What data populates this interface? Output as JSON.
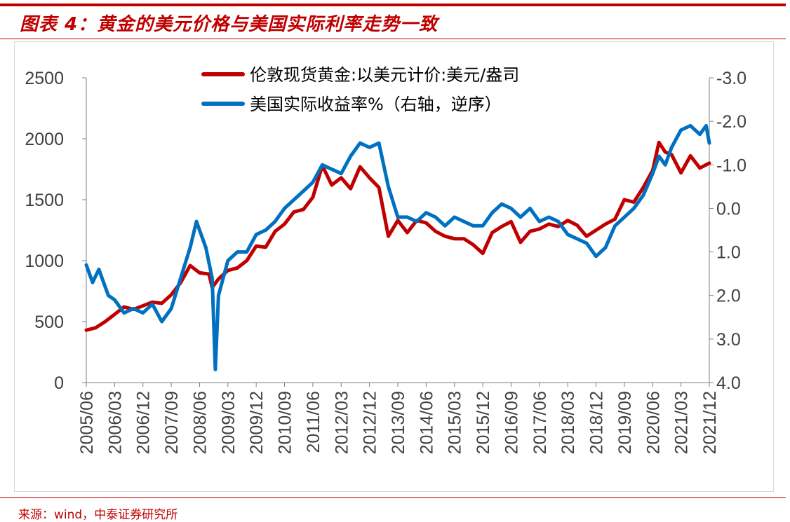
{
  "title": "图表 4：黄金的美元价格与美国实际利率走势一致",
  "source": "来源：wind，中泰证券研究所",
  "colors": {
    "accent": "#c00000",
    "gold_series": "#c00000",
    "yield_series": "#0070c0",
    "axis": "#7f7f7f",
    "text": "#404040"
  },
  "chart_data": {
    "type": "line",
    "title": "",
    "legend_position": "top-center",
    "grid": false,
    "x_ticks": [
      "2005/06",
      "2006/03",
      "2006/12",
      "2007/09",
      "2008/06",
      "2009/03",
      "2009/12",
      "2010/09",
      "2011/06",
      "2012/03",
      "2012/12",
      "2013/09",
      "2014/06",
      "2015/03",
      "2015/12",
      "2016/09",
      "2017/06",
      "2018/03",
      "2018/12",
      "2019/09",
      "2020/06",
      "2021/03",
      "2021/12"
    ],
    "y_left": {
      "ticks": [
        "0",
        "500",
        "1000",
        "1500",
        "2000",
        "2500"
      ],
      "range": [
        0,
        2500
      ]
    },
    "y_right": {
      "ticks": [
        "-3.0",
        "-2.0",
        "-1.0",
        "0.0",
        "1.0",
        "2.0",
        "3.0",
        "4.0"
      ],
      "range": [
        -3.0,
        4.0
      ],
      "reversed": true
    },
    "x_range": [
      "2005-06",
      "2021-12"
    ],
    "series": [
      {
        "name": "伦敦现货黄金:以美元计价:美元/盎司",
        "axis": "left",
        "color": "#c00000",
        "points": [
          [
            "2005-06",
            430
          ],
          [
            "2005-09",
            450
          ],
          [
            "2005-12",
            500
          ],
          [
            "2006-03",
            560
          ],
          [
            "2006-06",
            620
          ],
          [
            "2006-09",
            600
          ],
          [
            "2006-12",
            630
          ],
          [
            "2007-03",
            660
          ],
          [
            "2007-06",
            650
          ],
          [
            "2007-09",
            720
          ],
          [
            "2007-12",
            820
          ],
          [
            "2008-03",
            960
          ],
          [
            "2008-06",
            900
          ],
          [
            "2008-09",
            890
          ],
          [
            "2008-10",
            780
          ],
          [
            "2008-12",
            850
          ],
          [
            "2009-03",
            920
          ],
          [
            "2009-06",
            940
          ],
          [
            "2009-09",
            1000
          ],
          [
            "2009-12",
            1120
          ],
          [
            "2010-03",
            1110
          ],
          [
            "2010-06",
            1240
          ],
          [
            "2010-09",
            1300
          ],
          [
            "2010-12",
            1400
          ],
          [
            "2011-03",
            1420
          ],
          [
            "2011-06",
            1520
          ],
          [
            "2011-09",
            1780
          ],
          [
            "2011-12",
            1620
          ],
          [
            "2012-03",
            1680
          ],
          [
            "2012-06",
            1590
          ],
          [
            "2012-09",
            1770
          ],
          [
            "2012-12",
            1680
          ],
          [
            "2013-03",
            1600
          ],
          [
            "2013-06",
            1200
          ],
          [
            "2013-09",
            1330
          ],
          [
            "2013-12",
            1230
          ],
          [
            "2014-03",
            1330
          ],
          [
            "2014-06",
            1310
          ],
          [
            "2014-09",
            1240
          ],
          [
            "2014-12",
            1200
          ],
          [
            "2015-03",
            1180
          ],
          [
            "2015-06",
            1180
          ],
          [
            "2015-09",
            1130
          ],
          [
            "2015-12",
            1060
          ],
          [
            "2016-03",
            1230
          ],
          [
            "2016-06",
            1280
          ],
          [
            "2016-09",
            1320
          ],
          [
            "2016-12",
            1150
          ],
          [
            "2017-03",
            1240
          ],
          [
            "2017-06",
            1260
          ],
          [
            "2017-09",
            1300
          ],
          [
            "2017-12",
            1280
          ],
          [
            "2018-03",
            1330
          ],
          [
            "2018-06",
            1290
          ],
          [
            "2018-09",
            1200
          ],
          [
            "2018-12",
            1250
          ],
          [
            "2019-03",
            1300
          ],
          [
            "2019-06",
            1340
          ],
          [
            "2019-09",
            1500
          ],
          [
            "2019-12",
            1480
          ],
          [
            "2020-03",
            1600
          ],
          [
            "2020-06",
            1740
          ],
          [
            "2020-08",
            1970
          ],
          [
            "2020-10",
            1890
          ],
          [
            "2020-12",
            1870
          ],
          [
            "2021-03",
            1720
          ],
          [
            "2021-06",
            1860
          ],
          [
            "2021-09",
            1760
          ],
          [
            "2021-12",
            1800
          ]
        ]
      },
      {
        "name": "美国实际收益率%（右轴，逆序）",
        "axis": "right",
        "color": "#0070c0",
        "points": [
          [
            "2005-06",
            1.3
          ],
          [
            "2005-08",
            1.7
          ],
          [
            "2005-10",
            1.4
          ],
          [
            "2006-01",
            2.0
          ],
          [
            "2006-03",
            2.1
          ],
          [
            "2006-06",
            2.4
          ],
          [
            "2006-09",
            2.3
          ],
          [
            "2006-12",
            2.4
          ],
          [
            "2007-03",
            2.2
          ],
          [
            "2007-06",
            2.6
          ],
          [
            "2007-09",
            2.3
          ],
          [
            "2007-12",
            1.6
          ],
          [
            "2008-03",
            0.9
          ],
          [
            "2008-05",
            0.3
          ],
          [
            "2008-08",
            0.9
          ],
          [
            "2008-10",
            1.6
          ],
          [
            "2008-11",
            3.7
          ],
          [
            "2008-12",
            2.0
          ],
          [
            "2009-03",
            1.2
          ],
          [
            "2009-06",
            1.0
          ],
          [
            "2009-09",
            1.0
          ],
          [
            "2009-12",
            0.6
          ],
          [
            "2010-03",
            0.5
          ],
          [
            "2010-06",
            0.3
          ],
          [
            "2010-09",
            0.0
          ],
          [
            "2010-12",
            -0.2
          ],
          [
            "2011-03",
            -0.4
          ],
          [
            "2011-06",
            -0.6
          ],
          [
            "2011-09",
            -1.0
          ],
          [
            "2011-12",
            -0.9
          ],
          [
            "2012-03",
            -0.8
          ],
          [
            "2012-06",
            -1.2
          ],
          [
            "2012-09",
            -1.5
          ],
          [
            "2012-12",
            -1.4
          ],
          [
            "2013-03",
            -1.5
          ],
          [
            "2013-06",
            -0.5
          ],
          [
            "2013-09",
            0.2
          ],
          [
            "2013-12",
            0.2
          ],
          [
            "2014-03",
            0.3
          ],
          [
            "2014-06",
            0.1
          ],
          [
            "2014-09",
            0.2
          ],
          [
            "2014-12",
            0.4
          ],
          [
            "2015-03",
            0.2
          ],
          [
            "2015-06",
            0.3
          ],
          [
            "2015-09",
            0.4
          ],
          [
            "2015-12",
            0.4
          ],
          [
            "2016-03",
            0.1
          ],
          [
            "2016-06",
            -0.1
          ],
          [
            "2016-09",
            0.0
          ],
          [
            "2016-12",
            0.2
          ],
          [
            "2017-03",
            0.0
          ],
          [
            "2017-06",
            0.3
          ],
          [
            "2017-09",
            0.2
          ],
          [
            "2017-12",
            0.3
          ],
          [
            "2018-03",
            0.6
          ],
          [
            "2018-06",
            0.7
          ],
          [
            "2018-09",
            0.8
          ],
          [
            "2018-12",
            1.1
          ],
          [
            "2019-03",
            0.9
          ],
          [
            "2019-06",
            0.4
          ],
          [
            "2019-09",
            0.2
          ],
          [
            "2019-12",
            0.0
          ],
          [
            "2020-03",
            -0.3
          ],
          [
            "2020-06",
            -0.8
          ],
          [
            "2020-08",
            -1.2
          ],
          [
            "2020-10",
            -1.0
          ],
          [
            "2020-12",
            -1.4
          ],
          [
            "2021-03",
            -1.8
          ],
          [
            "2021-06",
            -1.9
          ],
          [
            "2021-09",
            -1.7
          ],
          [
            "2021-11",
            -1.9
          ],
          [
            "2021-12",
            -1.5
          ]
        ]
      }
    ]
  }
}
